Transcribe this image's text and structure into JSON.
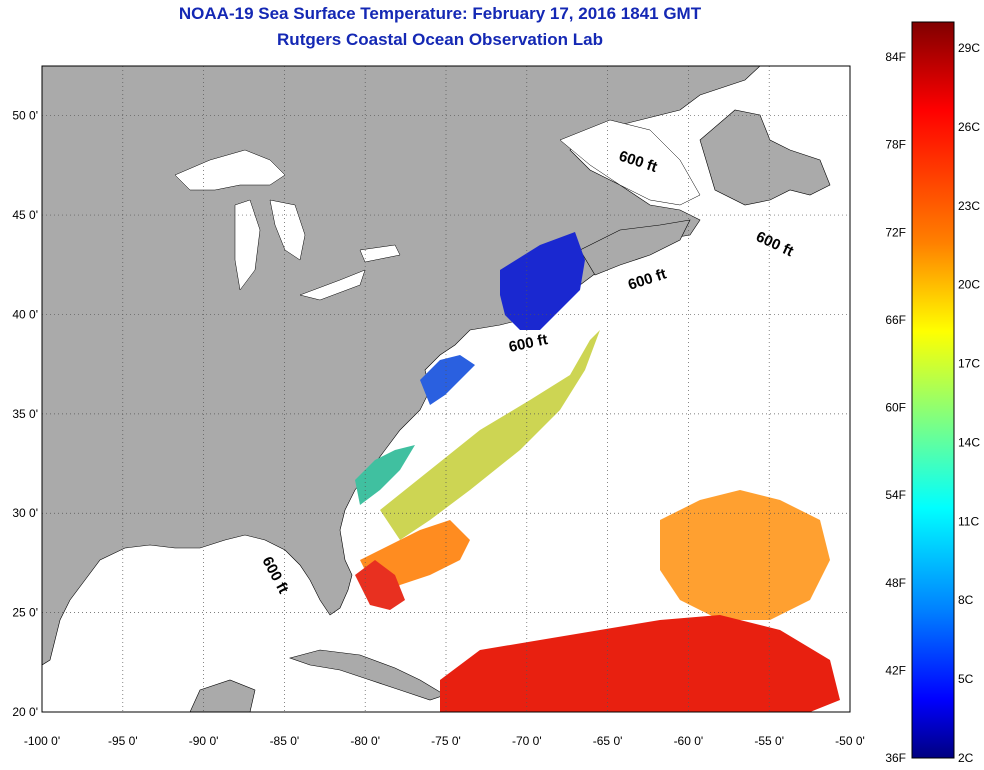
{
  "title": {
    "line1": "NOAA-19 Sea Surface Temperature:  February 17, 2016 1841 GMT",
    "line2": "Rutgers Coastal Ocean Observation Lab"
  },
  "map": {
    "lon_range": [
      -100,
      -50
    ],
    "lat_range": [
      20,
      52.5
    ],
    "lat_ticks": [
      {
        "value": 20,
        "label": "20 0'"
      },
      {
        "value": 25,
        "label": "25 0'"
      },
      {
        "value": 30,
        "label": "30 0'"
      },
      {
        "value": 35,
        "label": "35 0'"
      },
      {
        "value": 40,
        "label": "40 0'"
      },
      {
        "value": 45,
        "label": "45 0'"
      },
      {
        "value": 50,
        "label": "50 0'"
      }
    ],
    "lon_ticks": [
      {
        "value": -100,
        "label": "-100 0'"
      },
      {
        "value": -95,
        "label": "-95 0'"
      },
      {
        "value": -90,
        "label": "-90 0'"
      },
      {
        "value": -85,
        "label": "-85 0'"
      },
      {
        "value": -80,
        "label": "-80 0'"
      },
      {
        "value": -75,
        "label": "-75 0'"
      },
      {
        "value": -70,
        "label": "-70 0'"
      },
      {
        "value": -65,
        "label": "-65 0'"
      },
      {
        "value": -60,
        "label": "-60 0'"
      },
      {
        "value": -55,
        "label": "-55 0'"
      },
      {
        "value": -50,
        "label": "-50 0'"
      }
    ],
    "contour_labels": [
      "600 ft",
      "600 ft",
      "600 ft",
      "600 ft",
      "600 ft"
    ],
    "land_color": "#aaaaaa",
    "ocean_color": "#ffffff"
  },
  "colorbar": {
    "f_labels": [
      "84F",
      "78F",
      "72F",
      "66F",
      "60F",
      "54F",
      "48F",
      "42F",
      "36F"
    ],
    "c_labels": [
      "29C",
      "26C",
      "23C",
      "20C",
      "17C",
      "14C",
      "11C",
      "8C",
      "5C",
      "2C"
    ],
    "colors": [
      "#800000",
      "#ff0000",
      "#ff8000",
      "#ffff00",
      "#80ff80",
      "#00ffff",
      "#0080ff",
      "#0000ff",
      "#000080"
    ]
  }
}
